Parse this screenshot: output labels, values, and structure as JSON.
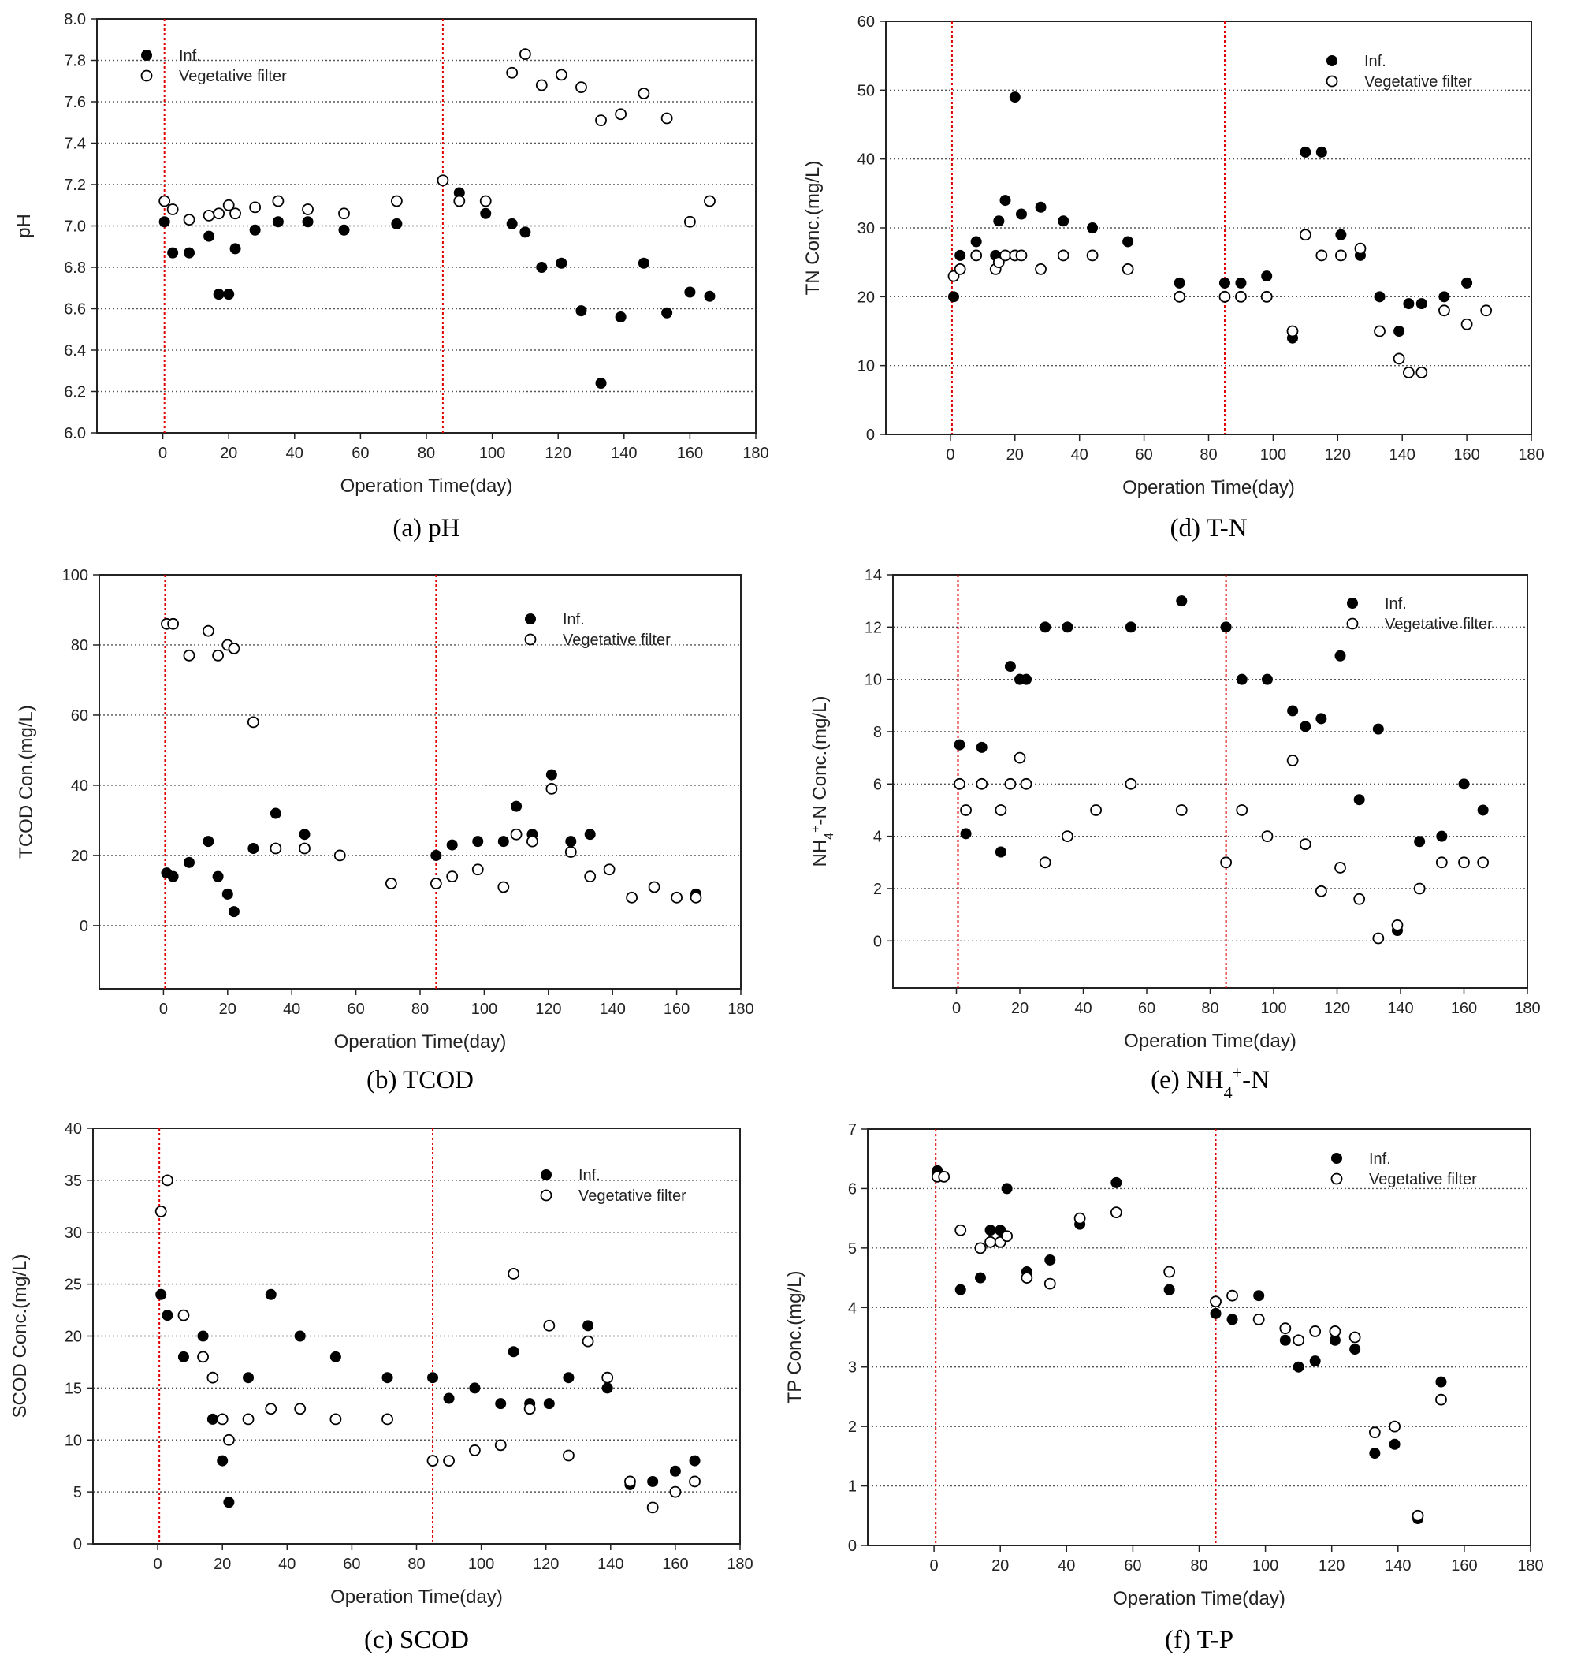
{
  "colors": {
    "vline": "#e00000",
    "grid": "#555555",
    "frame": "#222222",
    "marker": "#000000"
  },
  "legend": {
    "inf": "Inf.",
    "filter": "Vegetative filter"
  },
  "charts": [
    {
      "id": "a",
      "caption": "(a) pH",
      "ylabel": "pH",
      "xlabel": "Operation Time(day)",
      "chart_data": {
        "type": "scatter",
        "title": "(a) pH",
        "xlabel": "Operation Time(day)",
        "ylabel": "pH",
        "xlim": [
          -20,
          180
        ],
        "ylim": [
          6.0,
          8.0
        ],
        "xticks": [
          0,
          20,
          40,
          60,
          80,
          100,
          120,
          140,
          160,
          180
        ],
        "yticks": [
          6.0,
          6.2,
          6.4,
          6.6,
          6.8,
          7.0,
          7.2,
          7.4,
          7.6,
          7.8,
          8.0
        ],
        "ytick_decimals": 1,
        "grid": "horizontal dotted",
        "legend_position": "top-left",
        "vlines": [
          0.5,
          85
        ],
        "series": [
          {
            "name": "Inf.",
            "marker": "filled-circle",
            "x": [
              0.5,
              3,
              8,
              14,
              17,
              20,
              22,
              28,
              35,
              44,
              55,
              71,
              85,
              90,
              98,
              106,
              110,
              115,
              121,
              127,
              133,
              139,
              146,
              153,
              160,
              166
            ],
            "y": [
              7.02,
              6.87,
              6.87,
              6.95,
              6.67,
              6.67,
              6.89,
              6.98,
              7.02,
              7.02,
              6.98,
              7.01,
              7.22,
              7.16,
              7.06,
              7.01,
              6.97,
              6.8,
              6.82,
              6.59,
              6.24,
              6.56,
              6.82,
              6.58,
              6.68,
              6.66
            ]
          },
          {
            "name": "Vegetative filter",
            "marker": "open-circle",
            "x": [
              0.5,
              3,
              8,
              14,
              17,
              20,
              22,
              28,
              35,
              44,
              55,
              71,
              85,
              90,
              98,
              106,
              110,
              115,
              121,
              127,
              133,
              139,
              146,
              153,
              160,
              166
            ],
            "y": [
              7.12,
              7.08,
              7.03,
              7.05,
              7.06,
              7.1,
              7.06,
              7.09,
              7.12,
              7.08,
              7.06,
              7.12,
              7.22,
              7.12,
              7.12,
              7.74,
              7.83,
              7.68,
              7.73,
              7.67,
              7.51,
              7.54,
              7.64,
              7.52,
              7.02,
              7.12
            ]
          }
        ]
      }
    },
    {
      "id": "d",
      "caption": "(d) T-N",
      "ylabel": "TN Conc.(mg/L)",
      "xlabel": "Operation Time(day)",
      "chart_data": {
        "type": "scatter",
        "title": "(d) T-N",
        "xlabel": "Operation Time(day)",
        "ylabel": "TN Conc.(mg/L)",
        "xlim": [
          -20,
          180
        ],
        "ylim": [
          0,
          60
        ],
        "xticks": [
          0,
          20,
          40,
          60,
          80,
          100,
          120,
          140,
          160,
          180
        ],
        "yticks": [
          0,
          10,
          20,
          30,
          40,
          50,
          60
        ],
        "ytick_decimals": 0,
        "grid": "horizontal dotted",
        "legend_position": "top-right",
        "vlines": [
          0.5,
          85
        ],
        "series": [
          {
            "name": "Inf.",
            "marker": "filled-circle",
            "x": [
              1,
              3,
              8,
              14,
              15,
              17,
              20,
              22,
              28,
              35,
              44,
              55,
              71,
              85,
              90,
              98,
              106,
              110,
              115,
              121,
              127,
              133,
              139,
              142,
              146,
              153,
              160
            ],
            "y": [
              20,
              26,
              28,
              26,
              31,
              34,
              49,
              32,
              33,
              31,
              30,
              28,
              22,
              22,
              22,
              23,
              14,
              41,
              41,
              29,
              26,
              20,
              15,
              19,
              19,
              20,
              22
            ]
          },
          {
            "name": "Vegetative filter",
            "marker": "open-circle",
            "x": [
              1,
              3,
              8,
              14,
              15,
              17,
              20,
              22,
              28,
              35,
              44,
              55,
              71,
              85,
              90,
              98,
              106,
              110,
              115,
              121,
              127,
              133,
              139,
              142,
              146,
              153,
              160,
              166
            ],
            "y": [
              23,
              24,
              26,
              24,
              25,
              26,
              26,
              26,
              24,
              26,
              26,
              24,
              20,
              20,
              20,
              20,
              15,
              29,
              26,
              26,
              27,
              15,
              11,
              9,
              9,
              18,
              16,
              18
            ]
          }
        ]
      }
    },
    {
      "id": "b",
      "caption": "(b) TCOD",
      "ylabel": "TCOD Con.(mg/L)",
      "xlabel": "Operation Time(day)",
      "chart_data": {
        "type": "scatter",
        "title": "(b) TCOD",
        "xlabel": "Operation Time(day)",
        "ylabel": "TCOD Con.(mg/L)",
        "xlim": [
          -20,
          180
        ],
        "ylim": [
          -18,
          100
        ],
        "xticks": [
          0,
          20,
          40,
          60,
          80,
          100,
          120,
          140,
          160,
          180
        ],
        "yticks": [
          0,
          20,
          40,
          60,
          80,
          100
        ],
        "ytick_decimals": 0,
        "grid": "horizontal dotted",
        "legend_position": "top-right",
        "vlines": [
          0.5,
          85
        ],
        "series": [
          {
            "name": "Inf.",
            "marker": "filled-circle",
            "x": [
              1,
              3,
              8,
              14,
              17,
              20,
              22,
              28,
              35,
              44,
              85,
              90,
              98,
              106,
              110,
              115,
              121,
              127,
              133,
              166
            ],
            "y": [
              15,
              14,
              18,
              24,
              14,
              9,
              4,
              22,
              32,
              26,
              20,
              23,
              24,
              24,
              34,
              26,
              43,
              24,
              26,
              9
            ]
          },
          {
            "name": "Vegetative filter",
            "marker": "open-circle",
            "x": [
              1,
              3,
              8,
              14,
              17,
              20,
              22,
              28,
              35,
              44,
              55,
              71,
              85,
              90,
              98,
              106,
              110,
              115,
              121,
              127,
              133,
              139,
              146,
              153,
              160,
              166
            ],
            "y": [
              86,
              86,
              77,
              84,
              77,
              80,
              79,
              58,
              22,
              22,
              20,
              12,
              12,
              14,
              16,
              11,
              26,
              24,
              39,
              21,
              14,
              16,
              8,
              11,
              8,
              8
            ]
          }
        ]
      }
    },
    {
      "id": "e",
      "caption": "(e) NH4+-N",
      "ylabel": "NH4+-N Conc.(mg/L)",
      "xlabel": "Operation Time(day)",
      "chart_data": {
        "type": "scatter",
        "title": "(e) NH4+-N",
        "xlabel": "Operation Time(day)",
        "ylabel": "NH4+-N Conc.(mg/L)",
        "xlim": [
          -20,
          180
        ],
        "ylim": [
          -1.8,
          14
        ],
        "xticks": [
          0,
          20,
          40,
          60,
          80,
          100,
          120,
          140,
          160,
          180
        ],
        "yticks": [
          0,
          2,
          4,
          6,
          8,
          10,
          12,
          14
        ],
        "ytick_decimals": 0,
        "grid": "horizontal dotted",
        "legend_position": "top-right",
        "vlines": [
          0.5,
          85
        ],
        "series": [
          {
            "name": "Inf.",
            "marker": "filled-circle",
            "x": [
              1,
              3,
              8,
              14,
              17,
              20,
              22,
              28,
              35,
              55,
              71,
              85,
              90,
              98,
              106,
              110,
              115,
              121,
              127,
              133,
              139,
              146,
              153,
              160,
              166
            ],
            "y": [
              7.5,
              4.1,
              7.4,
              3.4,
              10.5,
              10,
              10,
              12,
              12,
              12,
              13,
              12,
              10,
              10,
              8.8,
              8.2,
              8.5,
              10.9,
              5.4,
              8.1,
              0.4,
              3.8,
              4,
              6,
              5
            ]
          },
          {
            "name": "Vegetative filter",
            "marker": "open-circle",
            "x": [
              1,
              3,
              8,
              14,
              17,
              20,
              22,
              28,
              35,
              44,
              55,
              71,
              85,
              90,
              98,
              106,
              110,
              115,
              121,
              127,
              133,
              139,
              146,
              153,
              160,
              166
            ],
            "y": [
              6,
              5,
              6,
              5,
              6,
              7,
              6,
              3,
              4,
              5,
              6,
              5,
              3,
              5,
              4,
              6.9,
              3.7,
              1.9,
              2.8,
              1.6,
              0.1,
              0.6,
              2,
              3,
              3,
              3
            ]
          }
        ]
      }
    },
    {
      "id": "c",
      "caption": "(c) SCOD",
      "ylabel": "SCOD Conc.(mg/L)",
      "xlabel": "Operation Time(day)",
      "chart_data": {
        "type": "scatter",
        "title": "(c) SCOD",
        "xlabel": "Operation Time(day)",
        "ylabel": "SCOD Conc.(mg/L)",
        "xlim": [
          -20,
          180
        ],
        "ylim": [
          0,
          40
        ],
        "xticks": [
          0,
          20,
          40,
          60,
          80,
          100,
          120,
          140,
          160,
          180
        ],
        "yticks": [
          0,
          5,
          10,
          15,
          20,
          25,
          30,
          35,
          40
        ],
        "ytick_decimals": 0,
        "grid": "horizontal dotted",
        "legend_position": "top-right",
        "vlines": [
          0.5,
          85
        ],
        "series": [
          {
            "name": "Inf.",
            "marker": "filled-circle",
            "x": [
              1,
              3,
              8,
              14,
              17,
              20,
              22,
              28,
              35,
              44,
              55,
              71,
              85,
              90,
              98,
              106,
              110,
              115,
              121,
              127,
              133,
              139,
              146,
              153,
              160,
              166
            ],
            "y": [
              24,
              22,
              18,
              20,
              12,
              8,
              4,
              16,
              24,
              20,
              18,
              16,
              16,
              14,
              15,
              13.5,
              18.5,
              13.5,
              13.5,
              16,
              21,
              15,
              5.7,
              6,
              7,
              8
            ]
          },
          {
            "name": "Vegetative filter",
            "marker": "open-circle",
            "x": [
              1,
              3,
              8,
              14,
              17,
              20,
              22,
              28,
              35,
              44,
              55,
              71,
              85,
              90,
              98,
              106,
              110,
              115,
              121,
              127,
              133,
              139,
              146,
              153,
              160,
              166
            ],
            "y": [
              32,
              35,
              22,
              18,
              16,
              12,
              10,
              12,
              13,
              13,
              12,
              12,
              8,
              8,
              9,
              9.5,
              26,
              13,
              21,
              8.5,
              19.5,
              16,
              6,
              3.5,
              5,
              6
            ]
          }
        ]
      }
    },
    {
      "id": "f",
      "caption": "(f) T-P",
      "ylabel": "TP Conc.(mg/L)",
      "xlabel": "Operation Time(day)",
      "chart_data": {
        "type": "scatter",
        "title": "(f) T-P",
        "xlabel": "Operation Time(day)",
        "ylabel": "TP Conc.(mg/L)",
        "xlim": [
          -20,
          180
        ],
        "ylim": [
          0,
          7
        ],
        "xticks": [
          0,
          20,
          40,
          60,
          80,
          100,
          120,
          140,
          160,
          180
        ],
        "yticks": [
          0,
          1,
          2,
          3,
          4,
          5,
          6,
          7
        ],
        "ytick_decimals": 0,
        "grid": "horizontal dotted",
        "legend_position": "top-right",
        "vlines": [
          0.5,
          85
        ],
        "series": [
          {
            "name": "Inf.",
            "marker": "filled-circle",
            "x": [
              1,
              8,
              14,
              17,
              20,
              22,
              28,
              35,
              44,
              55,
              71,
              85,
              90,
              98,
              106,
              110,
              115,
              121,
              127,
              133,
              139,
              146,
              153
            ],
            "y": [
              6.3,
              4.3,
              4.5,
              5.3,
              5.3,
              6.0,
              4.6,
              4.8,
              5.4,
              6.1,
              4.3,
              3.9,
              3.8,
              4.2,
              3.45,
              3.0,
              3.1,
              3.45,
              3.3,
              1.55,
              1.7,
              0.45,
              2.75
            ]
          },
          {
            "name": "Vegetative filter",
            "marker": "open-circle",
            "x": [
              1,
              3,
              8,
              14,
              17,
              20,
              22,
              28,
              35,
              44,
              55,
              71,
              85,
              90,
              98,
              106,
              110,
              115,
              121,
              127,
              133,
              139,
              146,
              153
            ],
            "y": [
              6.2,
              6.2,
              5.3,
              5.0,
              5.1,
              5.1,
              5.2,
              4.5,
              4.4,
              5.5,
              5.6,
              4.6,
              4.1,
              4.2,
              3.8,
              3.65,
              3.45,
              3.6,
              3.6,
              3.5,
              1.9,
              2.0,
              0.5,
              2.45
            ]
          }
        ]
      }
    }
  ]
}
